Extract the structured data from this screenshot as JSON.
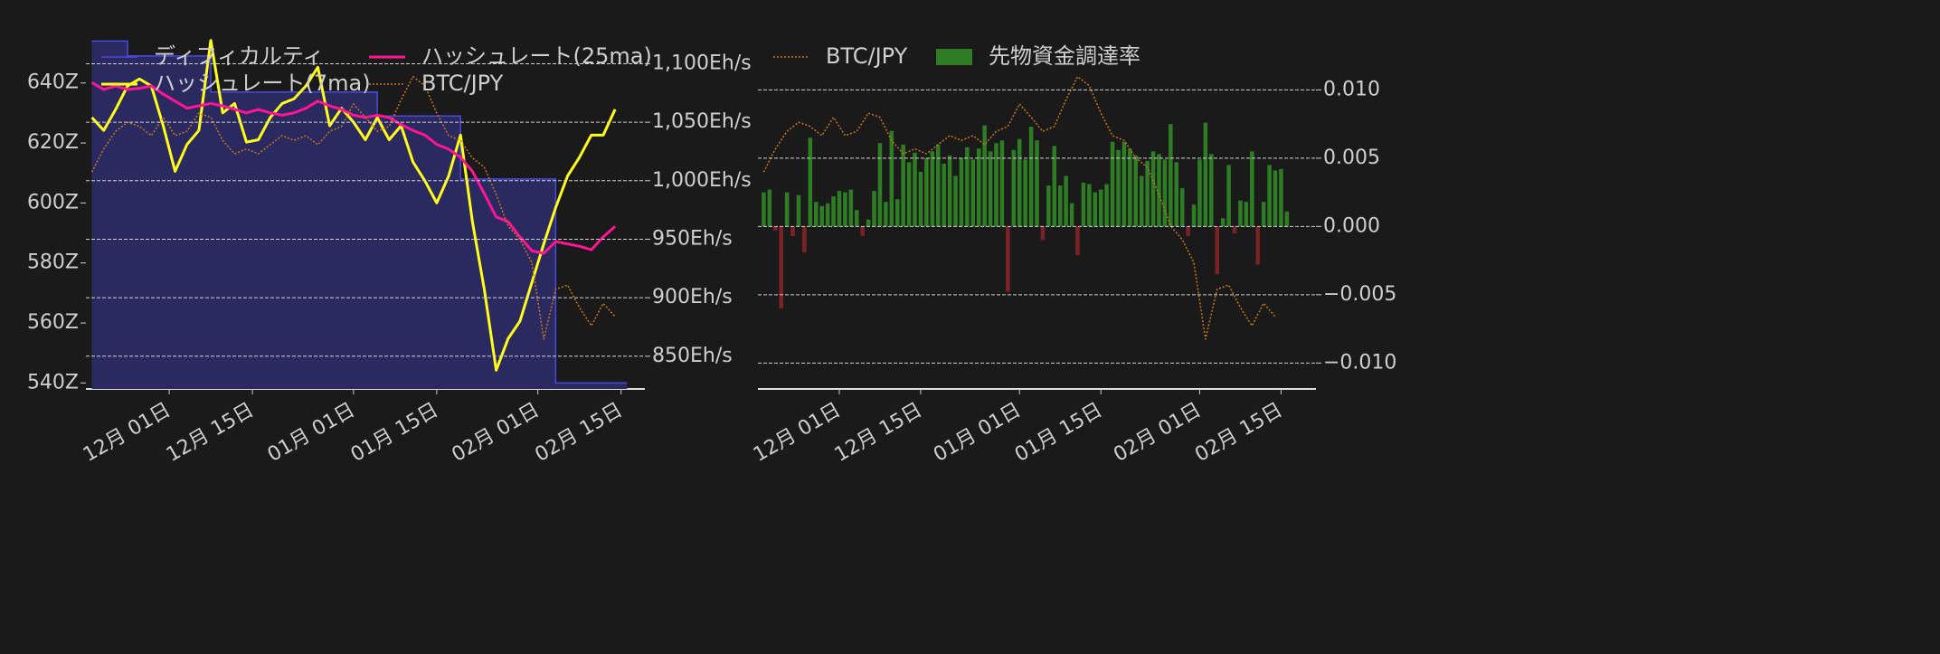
{
  "chart_data": [
    {
      "type": "line",
      "x": [
        "11-18",
        "11-20",
        "11-22",
        "11-24",
        "11-26",
        "11-28",
        "11-30",
        "12-02",
        "12-04",
        "12-06",
        "12-08",
        "12-10",
        "12-12",
        "12-14",
        "12-16",
        "12-18",
        "12-20",
        "12-22",
        "12-24",
        "12-26",
        "12-28",
        "12-30",
        "01-01",
        "01-03",
        "01-05",
        "01-07",
        "01-09",
        "01-11",
        "01-13",
        "01-15",
        "01-17",
        "01-19",
        "01-21",
        "01-23",
        "01-25",
        "01-27",
        "01-29",
        "01-31",
        "02-02",
        "02-04",
        "02-06",
        "02-08",
        "02-10",
        "02-12",
        "02-14"
      ],
      "xlim": [
        "11-17",
        "02-19"
      ],
      "xticks": [
        {
          "value": "12-01",
          "label": "12月 01日"
        },
        {
          "value": "12-15",
          "label": "12月 15日"
        },
        {
          "value": "01-01",
          "label": "01月 01日"
        },
        {
          "value": "01-15",
          "label": "01月 15日"
        },
        {
          "value": "02-01",
          "label": "02月 01日"
        },
        {
          "value": "02-15",
          "label": "02月 15日"
        }
      ],
      "ylim": [
        538,
        655
      ],
      "yticks": [
        {
          "value": 540,
          "label": "540Z"
        },
        {
          "value": 560,
          "label": "560Z"
        },
        {
          "value": 580,
          "label": "580Z"
        },
        {
          "value": 600,
          "label": "600Z"
        },
        {
          "value": 620,
          "label": "620Z"
        },
        {
          "value": 640,
          "label": "640Z"
        }
      ],
      "y2lim": [
        822,
        1122
      ],
      "y2ticks": [
        {
          "value": 850,
          "label": "850Eh/s"
        },
        {
          "value": 900,
          "label": "900Eh/s"
        },
        {
          "value": 950,
          "label": "950Eh/s"
        },
        {
          "value": 1000,
          "label": "1,000Eh/s"
        },
        {
          "value": 1050,
          "label": "1,050Eh/s"
        },
        {
          "value": 1100,
          "label": "1,100Eh/s"
        }
      ],
      "y3lim": [
        10000000,
        15000000
      ],
      "grid": true,
      "grid_axis": "y2",
      "legend": "upper left",
      "legend_columns": 2,
      "series": [
        {
          "name": "ディフィカルティ",
          "color": "#4a4ae0",
          "fill": "#2a2a60",
          "step": true,
          "values": [
            654,
            654,
            654,
            649,
            649,
            649,
            649,
            649,
            649,
            649,
            637,
            637,
            637,
            637,
            637,
            637,
            637,
            637,
            637,
            637,
            637,
            637,
            637,
            637,
            629,
            629,
            629,
            629,
            629,
            629,
            629,
            608,
            608,
            608,
            608,
            608,
            608,
            608,
            608,
            540,
            540,
            540,
            540,
            540,
            540
          ]
        },
        {
          "name": "ハッシュレート(7ma)",
          "color": "#ffff1a",
          "axis": "y2",
          "values": [
            1054,
            1043,
            1061,
            1081,
            1087,
            1081,
            1047,
            1008,
            1031,
            1043,
            1120,
            1058,
            1066,
            1033,
            1035,
            1054,
            1066,
            1070,
            1081,
            1097,
            1047,
            1062,
            1050,
            1035,
            1054,
            1035,
            1047,
            1016,
            1000,
            981,
            1004,
            1039,
            965,
            907,
            838,
            865,
            880,
            913,
            946,
            977,
            1004,
            1020,
            1039,
            1039,
            1061
          ]
        },
        {
          "name": "ハッシュレート(25ma)",
          "color": "#ff1493",
          "axis": "y2",
          "values": [
            1084,
            1078,
            1081,
            1078,
            1079,
            1081,
            1074,
            1068,
            1062,
            1064,
            1066,
            1064,
            1061,
            1058,
            1061,
            1058,
            1056,
            1058,
            1062,
            1068,
            1064,
            1061,
            1056,
            1054,
            1056,
            1054,
            1048,
            1043,
            1039,
            1031,
            1027,
            1020,
            1008,
            989,
            969,
            965,
            952,
            940,
            938,
            948,
            946,
            944,
            941,
            952,
            961
          ]
        },
        {
          "name": "BTC/JPY",
          "color": "#c8781e",
          "axis": "y3",
          "linestyle": "dotted",
          "values": [
            13090000,
            13420000,
            13670000,
            13800000,
            13740000,
            13610000,
            13870000,
            13610000,
            13670000,
            13930000,
            13870000,
            13540000,
            13350000,
            13420000,
            13350000,
            13480000,
            13610000,
            13540000,
            13610000,
            13480000,
            13670000,
            13740000,
            14060000,
            13870000,
            13670000,
            13740000,
            14120000,
            14450000,
            14320000,
            13930000,
            13610000,
            13540000,
            13290000,
            13160000,
            12770000,
            12320000,
            12130000,
            11800000,
            10710000,
            11420000,
            11480000,
            11160000,
            10900000,
            11220000,
            11030000
          ]
        }
      ]
    },
    {
      "type": "bar",
      "x": [
        "11-18",
        "11-19",
        "11-20",
        "11-21",
        "11-22",
        "11-23",
        "11-24",
        "11-25",
        "11-26",
        "11-27",
        "11-28",
        "11-29",
        "11-30",
        "12-01",
        "12-02",
        "12-03",
        "12-04",
        "12-05",
        "12-06",
        "12-07",
        "12-08",
        "12-09",
        "12-10",
        "12-11",
        "12-12",
        "12-13",
        "12-14",
        "12-15",
        "12-16",
        "12-17",
        "12-18",
        "12-19",
        "12-20",
        "12-21",
        "12-22",
        "12-23",
        "12-24",
        "12-25",
        "12-26",
        "12-27",
        "12-28",
        "12-29",
        "12-30",
        "12-31",
        "01-01",
        "01-02",
        "01-03",
        "01-04",
        "01-05",
        "01-06",
        "01-07",
        "01-08",
        "01-09",
        "01-10",
        "01-11",
        "01-12",
        "01-13",
        "01-14",
        "01-15",
        "01-16",
        "01-17",
        "01-18",
        "01-19",
        "01-20",
        "01-21",
        "01-22",
        "01-23",
        "01-24",
        "01-25",
        "01-26",
        "01-27",
        "01-28",
        "01-29",
        "01-30",
        "01-31",
        "02-01",
        "02-02",
        "02-03",
        "02-04",
        "02-05",
        "02-06",
        "02-07",
        "02-08",
        "02-09",
        "02-10",
        "02-11",
        "02-12",
        "02-13",
        "02-14",
        "02-15",
        "02-16"
      ],
      "xlim": [
        "11-17",
        "02-21"
      ],
      "xticks": [
        {
          "value": "12-01",
          "label": "12月 01日"
        },
        {
          "value": "12-15",
          "label": "12月 15日"
        },
        {
          "value": "01-01",
          "label": "01月 01日"
        },
        {
          "value": "01-15",
          "label": "01月 15日"
        },
        {
          "value": "02-01",
          "label": "02月 01日"
        },
        {
          "value": "02-15",
          "label": "02月 15日"
        }
      ],
      "ylim": [
        -0.0119,
        0.0138
      ],
      "yticks": [
        {
          "value": -0.01,
          "label": "−0.010"
        },
        {
          "value": -0.005,
          "label": "−0.005"
        },
        {
          "value": 0,
          "label": "0.000"
        },
        {
          "value": 0.005,
          "label": "0.005"
        },
        {
          "value": 0.01,
          "label": "0.010"
        }
      ],
      "y3lim": [
        10000000,
        15000000
      ],
      "yaxis_side": "right",
      "grid": true,
      "grid_axis": "y",
      "legend": "upper left",
      "legend_columns": 2,
      "series": [
        {
          "name": "BTC/JPY",
          "type": "line",
          "color": "#c8781e",
          "axis": "y3",
          "linestyle": "dotted",
          "x": [
            "11-18",
            "11-20",
            "11-22",
            "11-24",
            "11-26",
            "11-28",
            "11-30",
            "12-02",
            "12-04",
            "12-06",
            "12-08",
            "12-10",
            "12-12",
            "12-14",
            "12-16",
            "12-18",
            "12-20",
            "12-22",
            "12-24",
            "12-26",
            "12-28",
            "12-30",
            "01-01",
            "01-03",
            "01-05",
            "01-07",
            "01-09",
            "01-11",
            "01-13",
            "01-15",
            "01-17",
            "01-19",
            "01-21",
            "01-23",
            "01-25",
            "01-27",
            "01-29",
            "01-31",
            "02-02",
            "02-04",
            "02-06",
            "02-08",
            "02-10",
            "02-12",
            "02-14"
          ],
          "values": [
            13090000,
            13420000,
            13670000,
            13800000,
            13740000,
            13610000,
            13870000,
            13610000,
            13670000,
            13930000,
            13870000,
            13540000,
            13350000,
            13420000,
            13350000,
            13480000,
            13610000,
            13540000,
            13610000,
            13480000,
            13670000,
            13740000,
            14060000,
            13870000,
            13670000,
            13740000,
            14120000,
            14450000,
            14320000,
            13930000,
            13610000,
            13540000,
            13290000,
            13160000,
            12770000,
            12320000,
            12130000,
            11800000,
            10710000,
            11420000,
            11480000,
            11160000,
            10900000,
            11220000,
            11030000
          ]
        },
        {
          "name": "先物資金調達率",
          "color": "#2e7d24",
          "negative_color": "#7a2228",
          "values": [
            0.0025,
            0.0027,
            -0.0003,
            -0.006,
            0.0025,
            -0.0007,
            0.0023,
            -0.0019,
            0.0065,
            0.0018,
            0.0015,
            0.0017,
            0.0022,
            0.0026,
            0.0025,
            0.0027,
            0.0012,
            -0.0007,
            0.0005,
            0.0026,
            0.0061,
            0.0018,
            0.007,
            0.002,
            0.006,
            0.0047,
            0.0054,
            0.004,
            0.005,
            0.0055,
            0.006,
            0.0046,
            0.0052,
            0.0037,
            0.005,
            0.0058,
            0.0049,
            0.0057,
            0.0074,
            0.0055,
            0.0061,
            0.0063,
            -0.0048,
            0.0056,
            0.0064,
            0.0049,
            0.0073,
            0.0063,
            -0.001,
            0.003,
            0.0059,
            0.003,
            0.0037,
            0.0017,
            -0.0021,
            0.0032,
            0.0031,
            0.0025,
            0.0027,
            0.0031,
            0.0062,
            0.0056,
            0.0062,
            0.0057,
            0.0052,
            0.0037,
            0.0048,
            0.0055,
            0.0053,
            0.0049,
            0.0075,
            0.0047,
            0.0028,
            -0.0007,
            0.0016,
            0.0049,
            0.0076,
            0.0053,
            -0.0035,
            0.0006,
            0.0045,
            -0.0005,
            0.0019,
            0.0018,
            0.0055,
            -0.0028,
            0.0018,
            0.0045,
            0.0041,
            0.0042,
            0.0011
          ]
        }
      ]
    }
  ]
}
